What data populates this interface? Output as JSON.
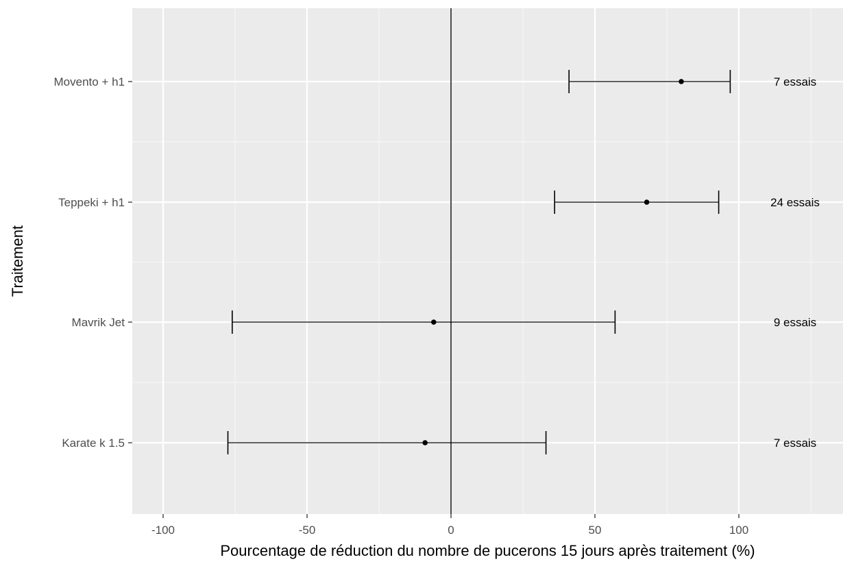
{
  "chart_data": {
    "type": "forest",
    "title": "",
    "xlabel": "Pourcentage de réduction du nombre de pucerons 15 jours après traitement (%)",
    "ylabel": "Traitement",
    "xlim": [
      -100,
      130
    ],
    "x_ticks": [
      -100,
      -50,
      0,
      50,
      100
    ],
    "x_tick_labels": [
      "-100",
      "-50",
      "0",
      "50",
      "100"
    ],
    "reference_line_x": 0,
    "grid": true,
    "legend": "none",
    "categories": [
      "Movento + h1",
      "Teppeki + h1",
      "Mavrik Jet",
      "Karate k 1.5"
    ],
    "estimates": [
      80,
      68,
      -6,
      -9
    ],
    "lower": [
      41,
      36,
      -76,
      -77.5
    ],
    "upper": [
      97,
      93,
      57,
      33
    ],
    "annotations": [
      "7 essais",
      "24 essais",
      "9 essais",
      "7 essais"
    ],
    "colors": {
      "panel_background": "#ebebeb",
      "grid_major": "#ffffff",
      "grid_minor": "#f5f5f5",
      "marks": "#000000",
      "axis_text": "#4d4d4d"
    }
  }
}
